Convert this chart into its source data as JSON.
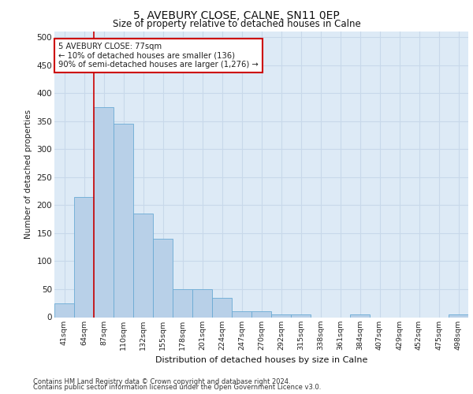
{
  "title": "5, AVEBURY CLOSE, CALNE, SN11 0EP",
  "subtitle": "Size of property relative to detached houses in Calne",
  "xlabel": "Distribution of detached houses by size in Calne",
  "ylabel": "Number of detached properties",
  "footer_line1": "Contains HM Land Registry data © Crown copyright and database right 2024.",
  "footer_line2": "Contains public sector information licensed under the Open Government Licence v3.0.",
  "categories": [
    "41sqm",
    "64sqm",
    "87sqm",
    "110sqm",
    "132sqm",
    "155sqm",
    "178sqm",
    "201sqm",
    "224sqm",
    "247sqm",
    "270sqm",
    "292sqm",
    "315sqm",
    "338sqm",
    "361sqm",
    "384sqm",
    "407sqm",
    "429sqm",
    "452sqm",
    "475sqm",
    "498sqm"
  ],
  "values": [
    25,
    215,
    375,
    345,
    185,
    140,
    50,
    50,
    35,
    10,
    10,
    5,
    5,
    0,
    0,
    5,
    0,
    0,
    0,
    0,
    5
  ],
  "bar_color": "#b8d0e8",
  "bar_edge_color": "#6aaad4",
  "grid_color": "#c8d8ea",
  "background_color": "#ddeaf6",
  "plot_bg_color": "#ffffff",
  "red_line_x": 1.5,
  "annotation_line1": "5 AVEBURY CLOSE: 77sqm",
  "annotation_line2": "← 10% of detached houses are smaller (136)",
  "annotation_line3": "90% of semi-detached houses are larger (1,276) →",
  "annotation_box_color": "#ffffff",
  "annotation_box_edge_color": "#cc0000",
  "annotation_text_color": "#222222",
  "red_line_color": "#cc0000",
  "ylim": [
    0,
    510
  ],
  "yticks": [
    0,
    50,
    100,
    150,
    200,
    250,
    300,
    350,
    400,
    450,
    500
  ]
}
